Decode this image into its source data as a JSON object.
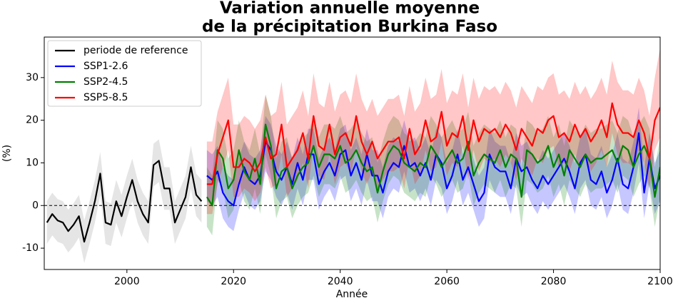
{
  "chart_data": {
    "type": "line",
    "title": [
      "Variation annuelle moyenne",
      "de la précipitation Burkina Faso"
    ],
    "x_label": "Année",
    "y_label": "(%)",
    "xlim": [
      1984.5,
      2100
    ],
    "ylim": [
      -15,
      39.5
    ],
    "xticks": [
      2000,
      2020,
      2040,
      2060,
      2080,
      2100
    ],
    "yticks": [
      -10,
      0,
      10,
      20,
      30
    ],
    "grid": false,
    "hline": 0,
    "legend": "upper left",
    "band_opacity": 0.22,
    "series": [
      {
        "name": "periode de reference",
        "color": "#000000",
        "band_color": "#888888",
        "x": [
          1985,
          1986,
          1987,
          1988,
          1989,
          1990,
          1991,
          1992,
          1993,
          1994,
          1995,
          1996,
          1997,
          1998,
          1999,
          2000,
          2001,
          2002,
          2003,
          2004,
          2005,
          2006,
          2007,
          2008,
          2009,
          2010,
          2011,
          2012,
          2013,
          2014
        ],
        "values": [
          -4,
          -2,
          -3.5,
          -4,
          -6,
          -4.5,
          -2.5,
          -8.5,
          -4,
          1,
          7.5,
          -4,
          -4.5,
          1,
          -2.5,
          2,
          6,
          1,
          -2,
          -4,
          9.5,
          10.5,
          4,
          4,
          -4,
          -1,
          2,
          9,
          2.5,
          1
        ],
        "lower": [
          -9,
          -7,
          -8.5,
          -9,
          -11,
          -9.5,
          -7.5,
          -13.5,
          -9,
          -4,
          2.5,
          -9,
          -9.5,
          -4,
          -7.5,
          -3,
          1,
          -4,
          -7,
          -9,
          4.5,
          5.5,
          -1,
          -1,
          -9,
          -6,
          -3,
          4,
          -2.5,
          -4
        ],
        "upper": [
          1,
          3,
          1.5,
          1,
          -1,
          0.5,
          2.5,
          -3.5,
          1,
          6,
          12.5,
          1,
          0.5,
          6,
          2.5,
          7,
          11,
          6,
          3,
          1,
          14.5,
          15.5,
          9,
          9,
          1,
          4,
          7,
          14,
          7.5,
          6
        ]
      },
      {
        "name": "SSP1-2.6",
        "color": "#0000ff",
        "band_color": "#0000ff",
        "x": [
          2015,
          2016,
          2017,
          2018,
          2019,
          2020,
          2021,
          2022,
          2023,
          2024,
          2025,
          2026,
          2027,
          2028,
          2029,
          2030,
          2031,
          2032,
          2033,
          2034,
          2035,
          2036,
          2037,
          2038,
          2039,
          2040,
          2041,
          2042,
          2043,
          2044,
          2045,
          2046,
          2047,
          2048,
          2049,
          2050,
          2051,
          2052,
          2053,
          2054,
          2055,
          2056,
          2057,
          2058,
          2059,
          2060,
          2061,
          2062,
          2063,
          2064,
          2065,
          2066,
          2067,
          2068,
          2069,
          2070,
          2071,
          2072,
          2073,
          2074,
          2075,
          2076,
          2077,
          2078,
          2079,
          2080,
          2081,
          2082,
          2083,
          2084,
          2085,
          2086,
          2087,
          2088,
          2089,
          2090,
          2091,
          2092,
          2093,
          2094,
          2095,
          2096,
          2097,
          2098,
          2099,
          2100
        ],
        "values": [
          7,
          6,
          8,
          3,
          1,
          0,
          5,
          9,
          6,
          5,
          7,
          15,
          13,
          8,
          6,
          9,
          5,
          10,
          6,
          12,
          12,
          5,
          8,
          10,
          7,
          12,
          13,
          7,
          10,
          6,
          12,
          7,
          7,
          3,
          8,
          10,
          9,
          14,
          9,
          10,
          7,
          10,
          6,
          12,
          10,
          4,
          7,
          12,
          6,
          9,
          5,
          1,
          3,
          12,
          9,
          8,
          8,
          4,
          11,
          8,
          9,
          6,
          4,
          7,
          5,
          7,
          9,
          11,
          8,
          4,
          10,
          12,
          6,
          5,
          8,
          3,
          6,
          11,
          5,
          4,
          9,
          17,
          3,
          11,
          4,
          7
        ],
        "lower": [
          1,
          0,
          2,
          -3,
          -5,
          -6,
          -1,
          3,
          0,
          -1,
          1,
          8,
          6,
          2,
          0,
          3,
          -1,
          4,
          0,
          6,
          6,
          -1,
          2,
          4,
          1,
          6,
          7,
          1,
          4,
          0,
          6,
          1,
          1,
          -3,
          2,
          4,
          3,
          8,
          3,
          4,
          1,
          4,
          0,
          6,
          4,
          -2,
          1,
          6,
          0,
          3,
          -1,
          -5,
          -3,
          6,
          3,
          2,
          2,
          -2,
          5,
          2,
          3,
          0,
          -2,
          1,
          -1,
          1,
          3,
          5,
          2,
          -2,
          4,
          6,
          0,
          -1,
          2,
          -3,
          0,
          5,
          -1,
          -2,
          3,
          10,
          -3,
          5,
          -2,
          1
        ],
        "upper": [
          13,
          12,
          14,
          9,
          7,
          6,
          11,
          15,
          12,
          11,
          13,
          21,
          19,
          14,
          12,
          15,
          11,
          16,
          12,
          18,
          18,
          11,
          14,
          16,
          13,
          18,
          19,
          13,
          16,
          12,
          18,
          13,
          13,
          9,
          14,
          16,
          15,
          20,
          15,
          16,
          13,
          16,
          12,
          18,
          16,
          10,
          13,
          18,
          12,
          15,
          11,
          7,
          9,
          18,
          15,
          14,
          14,
          10,
          17,
          14,
          15,
          12,
          10,
          13,
          11,
          13,
          15,
          17,
          14,
          10,
          16,
          18,
          12,
          11,
          14,
          9,
          12,
          17,
          11,
          10,
          15,
          23,
          9,
          17,
          10,
          13
        ]
      },
      {
        "name": "SSP2-4.5",
        "color": "#008000",
        "band_color": "#008000",
        "x": [
          2015,
          2016,
          2017,
          2018,
          2019,
          2020,
          2021,
          2022,
          2023,
          2024,
          2025,
          2026,
          2027,
          2028,
          2029,
          2030,
          2031,
          2032,
          2033,
          2034,
          2035,
          2036,
          2037,
          2038,
          2039,
          2040,
          2041,
          2042,
          2043,
          2044,
          2045,
          2046,
          2047,
          2048,
          2049,
          2050,
          2051,
          2052,
          2053,
          2054,
          2055,
          2056,
          2057,
          2058,
          2059,
          2060,
          2061,
          2062,
          2063,
          2064,
          2065,
          2066,
          2067,
          2068,
          2069,
          2070,
          2071,
          2072,
          2073,
          2074,
          2075,
          2076,
          2077,
          2078,
          2079,
          2080,
          2081,
          2082,
          2083,
          2084,
          2085,
          2086,
          2087,
          2088,
          2089,
          2090,
          2091,
          2092,
          2093,
          2094,
          2095,
          2096,
          2097,
          2098,
          2099,
          2100
        ],
        "values": [
          2,
          0,
          13,
          11,
          4,
          6,
          13,
          8,
          6,
          11,
          5,
          19,
          14,
          4,
          8,
          9,
          4,
          7,
          9,
          10,
          14,
          9,
          12,
          12,
          11,
          14,
          10,
          11,
          13,
          10,
          8,
          9,
          3,
          8,
          12,
          14,
          13,
          10,
          9,
          8,
          10,
          9,
          14,
          12,
          9,
          11,
          13,
          10,
          11,
          15,
          7,
          10,
          12,
          11,
          10,
          13,
          9,
          12,
          11,
          2,
          13,
          12,
          10,
          11,
          14,
          9,
          12,
          7,
          13,
          11,
          9,
          12,
          10,
          11,
          11,
          12,
          13,
          10,
          14,
          13,
          9,
          12,
          14,
          11,
          2,
          9
        ],
        "lower": [
          -5,
          -7,
          6,
          4,
          -3,
          -1,
          6,
          1,
          -1,
          4,
          -2,
          12,
          7,
          -3,
          1,
          2,
          -3,
          0,
          2,
          3,
          7,
          2,
          5,
          5,
          4,
          7,
          3,
          4,
          6,
          3,
          1,
          2,
          -4,
          1,
          5,
          7,
          6,
          3,
          2,
          1,
          3,
          2,
          7,
          5,
          2,
          4,
          6,
          3,
          4,
          8,
          0,
          3,
          5,
          4,
          3,
          6,
          2,
          5,
          4,
          -5,
          6,
          5,
          3,
          4,
          7,
          2,
          5,
          0,
          6,
          4,
          2,
          5,
          3,
          4,
          4,
          5,
          6,
          3,
          7,
          6,
          2,
          5,
          7,
          4,
          -5,
          2
        ],
        "upper": [
          9,
          7,
          20,
          18,
          11,
          13,
          20,
          15,
          13,
          18,
          12,
          26,
          21,
          11,
          15,
          16,
          11,
          14,
          16,
          17,
          21,
          16,
          19,
          19,
          18,
          21,
          17,
          18,
          20,
          17,
          15,
          16,
          10,
          15,
          19,
          21,
          20,
          17,
          16,
          15,
          17,
          16,
          21,
          19,
          16,
          18,
          20,
          17,
          18,
          22,
          14,
          17,
          19,
          18,
          17,
          20,
          16,
          19,
          18,
          9,
          20,
          19,
          17,
          18,
          21,
          16,
          19,
          14,
          20,
          18,
          16,
          19,
          17,
          18,
          18,
          19,
          20,
          17,
          21,
          20,
          16,
          19,
          21,
          18,
          9,
          16
        ]
      },
      {
        "name": "SSP5-8.5",
        "color": "#ff0000",
        "band_color": "#ff0000",
        "x": [
          2015,
          2016,
          2017,
          2018,
          2019,
          2020,
          2021,
          2022,
          2023,
          2024,
          2025,
          2026,
          2027,
          2028,
          2029,
          2030,
          2031,
          2032,
          2033,
          2034,
          2035,
          2036,
          2037,
          2038,
          2039,
          2040,
          2041,
          2042,
          2043,
          2044,
          2045,
          2046,
          2047,
          2048,
          2049,
          2050,
          2051,
          2052,
          2053,
          2054,
          2055,
          2056,
          2057,
          2058,
          2059,
          2060,
          2061,
          2062,
          2063,
          2064,
          2065,
          2066,
          2067,
          2068,
          2069,
          2070,
          2071,
          2072,
          2073,
          2074,
          2075,
          2076,
          2077,
          2078,
          2079,
          2080,
          2081,
          2082,
          2083,
          2084,
          2085,
          2086,
          2087,
          2088,
          2089,
          2090,
          2091,
          2092,
          2093,
          2094,
          2095,
          2096,
          2097,
          2098,
          2099,
          2100
        ],
        "values": [
          5,
          5,
          12,
          16,
          20,
          9,
          9,
          11,
          10,
          8,
          10,
          16,
          11,
          12,
          19,
          9,
          11,
          13,
          17,
          11,
          21,
          14,
          13,
          19,
          12,
          16,
          17,
          14,
          21,
          15,
          12,
          15,
          11,
          13,
          15,
          15,
          16,
          11,
          18,
          12,
          14,
          20,
          15,
          16,
          22,
          14,
          17,
          16,
          21,
          13,
          20,
          15,
          18,
          17,
          18,
          16,
          19,
          17,
          13,
          18,
          16,
          14,
          18,
          17,
          20,
          21,
          16,
          17,
          15,
          19,
          16,
          18,
          15,
          17,
          20,
          16,
          24,
          19,
          17,
          17,
          16,
          20,
          17,
          11,
          20,
          23
        ],
        "lower": [
          -2,
          -2,
          5,
          9,
          13,
          2,
          2,
          4,
          3,
          1,
          3,
          9,
          4,
          5,
          12,
          2,
          4,
          6,
          10,
          4,
          14,
          7,
          6,
          12,
          5,
          9,
          10,
          7,
          14,
          8,
          5,
          8,
          4,
          6,
          8,
          8,
          9,
          4,
          11,
          5,
          7,
          13,
          8,
          9,
          15,
          7,
          10,
          9,
          14,
          6,
          13,
          8,
          11,
          10,
          11,
          9,
          12,
          10,
          6,
          11,
          9,
          7,
          11,
          10,
          13,
          14,
          9,
          10,
          8,
          12,
          9,
          11,
          8,
          10,
          13,
          9,
          17,
          12,
          10,
          10,
          9,
          13,
          10,
          4,
          13,
          16
        ],
        "upper": [
          15,
          15,
          22,
          26,
          30,
          19,
          19,
          21,
          20,
          18,
          20,
          26,
          21,
          22,
          29,
          19,
          21,
          23,
          27,
          21,
          31,
          24,
          23,
          29,
          22,
          26,
          27,
          24,
          31,
          25,
          22,
          25,
          21,
          23,
          25,
          25,
          26,
          21,
          28,
          22,
          24,
          30,
          25,
          26,
          32,
          24,
          27,
          26,
          31,
          23,
          30,
          25,
          28,
          27,
          28,
          26,
          29,
          27,
          23,
          28,
          26,
          24,
          28,
          27,
          30,
          31,
          26,
          27,
          25,
          29,
          26,
          28,
          25,
          27,
          30,
          26,
          34,
          29,
          27,
          27,
          26,
          30,
          27,
          21,
          30,
          37
        ]
      }
    ]
  }
}
